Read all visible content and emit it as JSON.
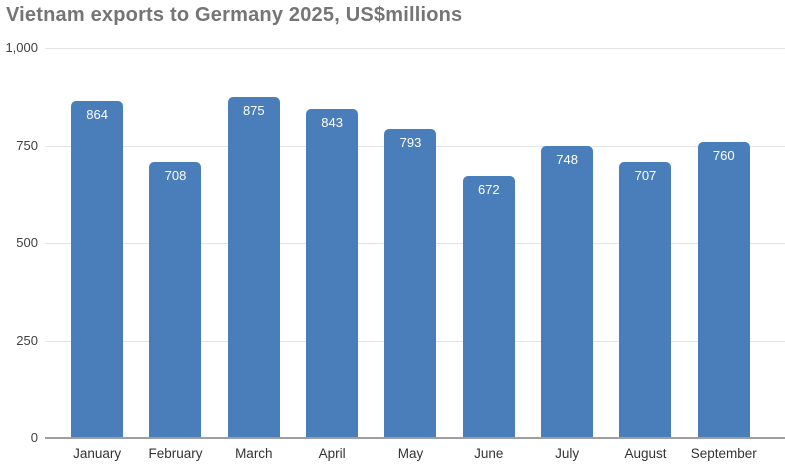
{
  "chart_data": {
    "type": "bar",
    "title": "Vietnam exports to Germany 2025, US$millions",
    "categories": [
      "January",
      "February",
      "March",
      "April",
      "May",
      "June",
      "July",
      "August",
      "September"
    ],
    "values": [
      864,
      708,
      875,
      843,
      793,
      672,
      748,
      707,
      760
    ],
    "value_labels": [
      "864",
      "708",
      "875",
      "843",
      "793",
      "672",
      "748",
      "707",
      "760"
    ],
    "xlabel": "",
    "ylabel": "",
    "ylim": [
      0,
      1000
    ],
    "yticks": [
      0,
      250,
      500,
      750,
      1000
    ],
    "ytick_labels": [
      "0",
      "250",
      "500",
      "750",
      "1,000"
    ],
    "grid": true,
    "legend": "none",
    "colors": {
      "bar": "#4a7ebb",
      "bar_value_text": "#ffffff",
      "title_text": "#757575",
      "axis_text": "#404040",
      "gridline": "#e3e3e3",
      "baseline": "#9e9e9e",
      "background": "#ffffff"
    }
  }
}
